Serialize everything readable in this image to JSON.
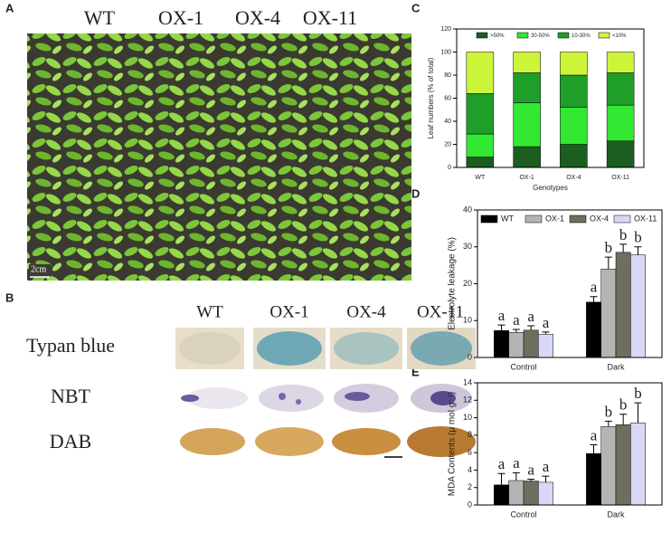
{
  "panel_labels": [
    "A",
    "B",
    "C",
    "D",
    "E"
  ],
  "photo_a": {
    "labels": [
      "WT",
      "OX-1",
      "OX-4",
      "OX-11"
    ],
    "scale": "2cm"
  },
  "photo_b": {
    "columns": [
      "WT",
      "OX-1",
      "OX-4",
      "OX-11"
    ],
    "rows": [
      "Typan blue",
      "NBT",
      "DAB"
    ]
  },
  "chart_data": [
    {
      "type": "stacked_bar",
      "x_label": "Genotypes",
      "y_label": "Leaf numbers (% of total)",
      "categories": [
        "WT",
        "OX-1",
        "OX-4",
        "OX-11"
      ],
      "series": [
        {
          "name": ">50%",
          "color": "#1b5e20",
          "values": [
            9,
            18,
            20,
            23
          ]
        },
        {
          "name": "30-50%",
          "color": "#33e833",
          "values": [
            20,
            38,
            32,
            31
          ]
        },
        {
          "name": "10-30%",
          "color": "#1f9e2a",
          "values": [
            35,
            26,
            28,
            28
          ]
        },
        {
          "name": "<10%",
          "color": "#ccf53a",
          "values": [
            36,
            18,
            20,
            18
          ]
        }
      ],
      "ylim": [
        0,
        120
      ],
      "yticks": [
        0,
        20,
        40,
        60,
        80,
        100,
        120
      ]
    },
    {
      "type": "bar",
      "y_label": "Electrolyte leakage (%)",
      "categories": [
        "Control",
        "Dark"
      ],
      "series": [
        {
          "name": "WT",
          "color": "#000000",
          "values": [
            7.3,
            15.0
          ],
          "errors": [
            1.5,
            1.5
          ],
          "letters": [
            "a",
            "a"
          ]
        },
        {
          "name": "OX-1",
          "color": "#b4b4b4",
          "values": [
            6.8,
            24.0
          ],
          "errors": [
            0.8,
            3.2
          ],
          "letters": [
            "a",
            "b"
          ]
        },
        {
          "name": "OX-4",
          "color": "#6e6e5e",
          "values": [
            7.4,
            28.5
          ],
          "errors": [
            1.2,
            2.2
          ],
          "letters": [
            "a",
            "b"
          ]
        },
        {
          "name": "OX-11",
          "color": "#d8d8f6",
          "values": [
            6.3,
            27.8
          ],
          "errors": [
            0.6,
            2.2
          ],
          "letters": [
            "a",
            "b"
          ]
        }
      ],
      "ylim": [
        0,
        40
      ],
      "yticks": [
        0,
        10,
        20,
        30,
        40
      ]
    },
    {
      "type": "bar",
      "y_label": "MDA Contents (μ mol g⁻¹)",
      "categories": [
        "Control",
        "Dark"
      ],
      "series": [
        {
          "name": "WT",
          "color": "#000000",
          "values": [
            2.3,
            5.9
          ],
          "errors": [
            1.3,
            1.0
          ],
          "letters": [
            "a",
            "a"
          ]
        },
        {
          "name": "OX-1",
          "color": "#b4b4b4",
          "values": [
            2.8,
            9.0
          ],
          "errors": [
            0.9,
            0.6
          ],
          "letters": [
            "a",
            "b"
          ]
        },
        {
          "name": "OX-4",
          "color": "#6e6e5e",
          "values": [
            2.75,
            9.2
          ],
          "errors": [
            0.2,
            1.2
          ],
          "letters": [
            "a",
            "b"
          ]
        },
        {
          "name": "OX-11",
          "color": "#d8d8f6",
          "values": [
            2.6,
            9.4
          ],
          "errors": [
            0.7,
            2.3
          ],
          "letters": [
            "a",
            "b"
          ]
        }
      ],
      "ylim": [
        0,
        14
      ],
      "yticks": [
        0,
        2,
        4,
        6,
        8,
        10,
        12,
        14
      ]
    }
  ]
}
